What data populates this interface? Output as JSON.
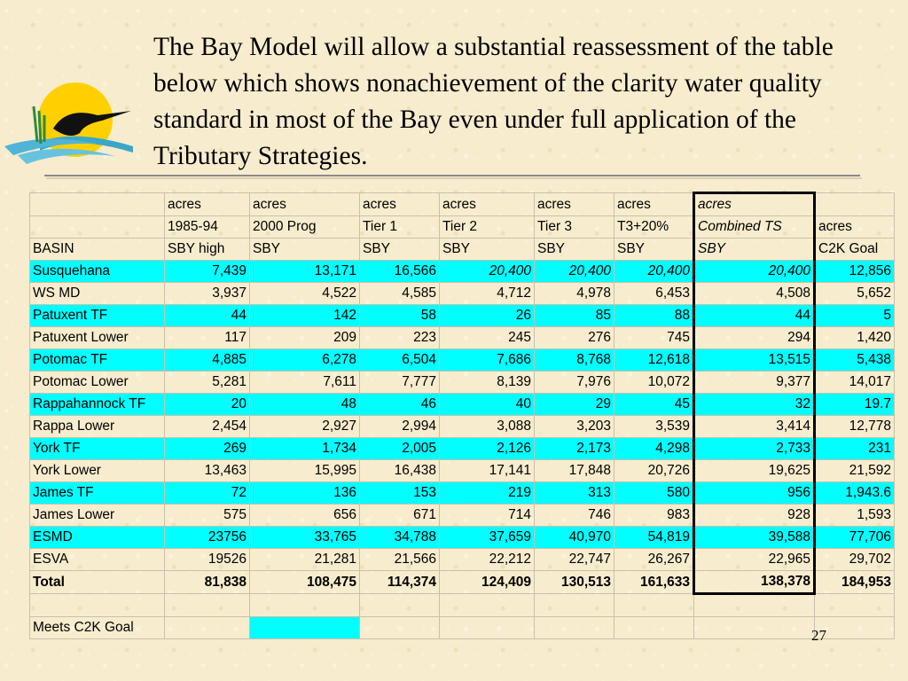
{
  "heading": "The Bay Model will allow a substantial reassessment of the table below which shows nonachievement of the clarity water quality standard in most of the Bay even under full application of the Tributary Strategies.",
  "table": {
    "header_row1": [
      "",
      "acres",
      "acres",
      "acres",
      "acres",
      "acres",
      "acres",
      "acres",
      ""
    ],
    "header_row2": [
      "",
      "1985-94",
      "2000 Prog",
      "Tier 1",
      "Tier 2",
      "Tier 3",
      "T3+20%",
      "Combined TS",
      "acres"
    ],
    "header_row3": [
      "BASIN",
      "SBY high",
      "SBY",
      "SBY",
      "SBY",
      "SBY",
      "SBY",
      "SBY",
      "C2K Goal"
    ],
    "rows": [
      {
        "basin": "Susquehana",
        "cells": [
          "7,439",
          "13,171",
          "16,566",
          "20,400",
          "20,400",
          "20,400",
          "20,400",
          "12,856"
        ]
      },
      {
        "basin": "WS MD",
        "cells": [
          "3,937",
          "4,522",
          "4,585",
          "4,712",
          "4,978",
          "6,453",
          "4,508",
          "5,652"
        ]
      },
      {
        "basin": "Patuxent TF",
        "cells": [
          "44",
          "142",
          "58",
          "26",
          "85",
          "88",
          "44",
          "5"
        ]
      },
      {
        "basin": "Patuxent Lower",
        "cells": [
          "117",
          "209",
          "223",
          "245",
          "276",
          "745",
          "294",
          "1,420"
        ]
      },
      {
        "basin": "Potomac TF",
        "cells": [
          "4,885",
          "6,278",
          "6,504",
          "7,686",
          "8,768",
          "12,618",
          "13,515",
          "5,438"
        ]
      },
      {
        "basin": "Potomac Lower",
        "cells": [
          "5,281",
          "7,611",
          "7,777",
          "8,139",
          "7,976",
          "10,072",
          "9,377",
          "14,017"
        ]
      },
      {
        "basin": "Rappahannock TF",
        "cells": [
          "20",
          "48",
          "46",
          "40",
          "29",
          "45",
          "32",
          "19.7"
        ]
      },
      {
        "basin": "Rappa Lower",
        "cells": [
          "2,454",
          "2,927",
          "2,994",
          "3,088",
          "3,203",
          "3,539",
          "3,414",
          "12,778"
        ]
      },
      {
        "basin": "York TF",
        "cells": [
          "269",
          "1,734",
          "2,005",
          "2,126",
          "2,173",
          "4,298",
          "2,733",
          "231"
        ]
      },
      {
        "basin": "York Lower",
        "cells": [
          "13,463",
          "15,995",
          "16,438",
          "17,141",
          "17,848",
          "20,726",
          "19,625",
          "21,592"
        ]
      },
      {
        "basin": "James TF",
        "cells": [
          "72",
          "136",
          "153",
          "219",
          "313",
          "580",
          "956",
          "1,943.6"
        ]
      },
      {
        "basin": "James Lower",
        "cells": [
          "575",
          "656",
          "671",
          "714",
          "746",
          "983",
          "928",
          "1,593"
        ]
      },
      {
        "basin": "ESMD",
        "cells": [
          "23756",
          "33,765",
          "34,788",
          "37,659",
          "40,970",
          "54,819",
          "39,588",
          "77,706"
        ]
      },
      {
        "basin": "ESVA",
        "cells": [
          "19526",
          "21,281",
          "21,566",
          "22,212",
          "22,747",
          "26,267",
          "22,965",
          "29,702"
        ]
      }
    ],
    "total": {
      "basin": "Total",
      "cells": [
        "81,838",
        "108,475",
        "114,374",
        "124,409",
        "130,513",
        "161,633",
        "138,378",
        "184,953"
      ]
    },
    "meets_label": "Meets C2K Goal"
  },
  "page_number": "27",
  "colors": {
    "highlight": "#00ffff",
    "background": "#f7eccd"
  }
}
